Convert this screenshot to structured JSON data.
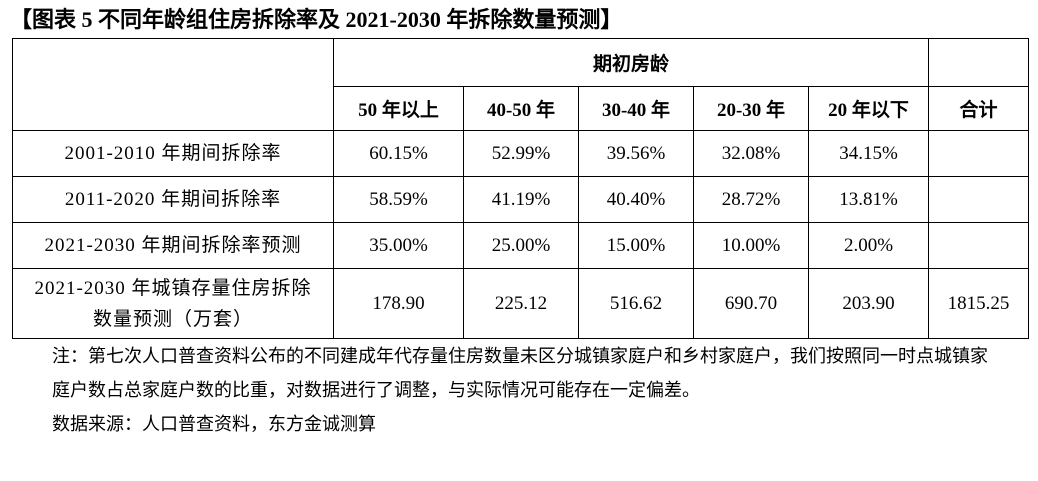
{
  "header": {
    "title": "【图表 5  不同年龄组住房拆除率及 2021-2030 年拆除数量预测】"
  },
  "table": {
    "group_header": "期初房龄",
    "columns": [
      "50 年以上",
      "40-50 年",
      "30-40 年",
      "20-30 年",
      "20 年以下",
      "合计"
    ],
    "rows": [
      {
        "label": "2001-2010 年期间拆除率",
        "values": [
          "60.15%",
          "52.99%",
          "39.56%",
          "32.08%",
          "34.15%"
        ]
      },
      {
        "label": "2011-2020 年期间拆除率",
        "values": [
          "58.59%",
          "41.19%",
          "40.40%",
          "28.72%",
          "13.81%"
        ]
      },
      {
        "label": "2021-2030 年期间拆除率预测",
        "values": [
          "35.00%",
          "25.00%",
          "15.00%",
          "10.00%",
          "2.00%"
        ]
      },
      {
        "label": "2021-2030 年城镇存量住房拆除数量预测（万套）",
        "values": [
          "178.90",
          "225.12",
          "516.62",
          "690.70",
          "203.90"
        ],
        "total": "1815.25"
      }
    ]
  },
  "notes": {
    "note": "注：第七次人口普查资料公布的不同建成年代存量住房数量未区分城镇家庭户和乡村家庭户，我们按照同一时点城镇家庭户数占总家庭户数的比重，对数据进行了调整，与实际情况可能存在一定偏差。",
    "source": "数据来源：人口普查资料，东方金诚测算"
  }
}
